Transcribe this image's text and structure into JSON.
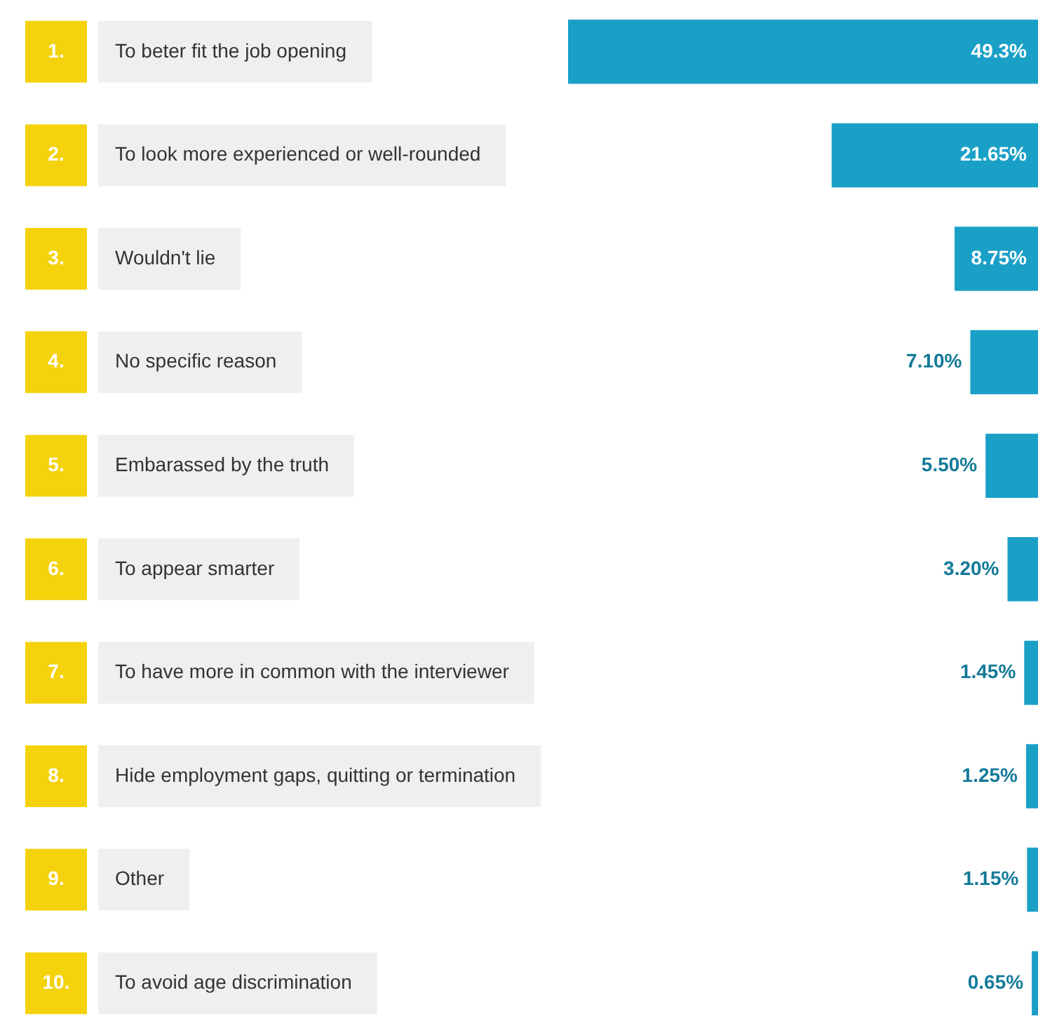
{
  "chart_data": {
    "type": "bar",
    "orientation": "horizontal",
    "categories": [
      "To beter fit the job opening",
      "To look more experienced or well-rounded",
      "Wouldn't lie",
      "No specific reason",
      "Embarassed by the truth",
      "To appear smarter",
      "To have more in common with the interviewer",
      "Hide employment gaps, quitting or termination",
      "Other",
      "To avoid age discrimination"
    ],
    "annotations": [
      "1.",
      "2.",
      "3.",
      "4.",
      "5.",
      "6.",
      "7.",
      "8.",
      "9.",
      "10."
    ],
    "values": [
      49.3,
      21.65,
      8.75,
      7.1,
      5.5,
      3.2,
      1.45,
      1.25,
      1.15,
      0.65
    ],
    "value_labels": [
      "49.3%",
      "21.65%",
      "8.75%",
      "7.10%",
      "5.50%",
      "3.20%",
      "1.45%",
      "1.25%",
      "1.15%",
      "0.65%"
    ],
    "color": "#1aa0c6",
    "legend": false
  }
}
